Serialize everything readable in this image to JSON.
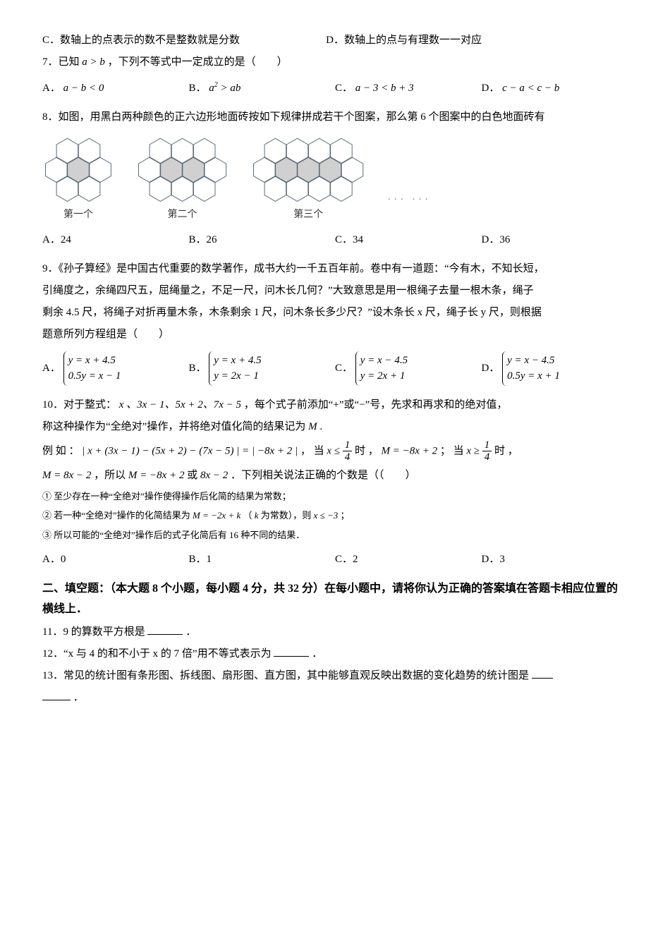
{
  "q6": {
    "optC": "C．数轴上的点表示的数不是整数就是分数",
    "optD": "D．数轴上的点与有理数一一对应"
  },
  "q7": {
    "stem": "7．已知",
    "cond": "a > b",
    "tail": "，下列不等式中一定成立的是（　　）",
    "A": {
      "label": "A．",
      "expr": "a − b < 0"
    },
    "B": {
      "label": "B．",
      "expr_html": "a<span class='sup'>2</span> > ab"
    },
    "C": {
      "label": "C．",
      "expr": "a − 3 < b + 3"
    },
    "D": {
      "label": "D．",
      "expr": "c − a < c − b"
    }
  },
  "q8": {
    "stem": "8．如图，用黑白两种颜色的正六边形地面砖按如下规律拼成若干个图案，那么第 6 个图案中的白色地面砖有",
    "cap1": "第一个",
    "cap2": "第二个",
    "cap3": "第三个",
    "dots": "··· ···",
    "A": "A．24",
    "B": "B．26",
    "C": "C．34",
    "D": "D．36",
    "hex": {
      "stroke": "#5b6b7a",
      "fill_white": "#ffffff",
      "fill_dark": "#d0d0d0",
      "size": 18
    }
  },
  "q9": {
    "stem1": "9．《孙子算经》是中国古代重要的数学著作，成书大约一千五百年前。卷中有一道题：“今有木，不知长短，",
    "stem2": "引绳度之，余绳四尺五，屈绳量之，不足一尺，问木长几何？”大致意思是用一根绳子去量一根木条，绳子",
    "stem3": "剩余 4.5 尺，将绳子对折再量木条，木条剩余 1 尺，问木条长多少尺？”设木条长 x 尺，绳子长 y 尺，则根据",
    "stem4": "题意所列方程组是（　　）",
    "A": {
      "label": "A．",
      "r1": "y = x + 4.5",
      "r2": "0.5y = x − 1"
    },
    "B": {
      "label": "B．",
      "r1": "y = x + 4.5",
      "r2": "y = 2x − 1"
    },
    "C": {
      "label": "C．",
      "r1": "y = x − 4.5",
      "r2": "y = 2x + 1"
    },
    "D": {
      "label": "D．",
      "r1": "y = x − 4.5",
      "r2": "0.5y = x + 1"
    }
  },
  "q10": {
    "stem1_a": "10．对于整式：",
    "stem1_b": "x 、3x − 1、5x + 2、7x − 5",
    "stem1_c": "，每个式子前添加“+”或“−”号，先求和再求和的绝对值，",
    "stem2_a": "称这种操作为“全绝对”操作，并将绝对值化简的结果记为",
    "stem2_b": "M",
    "stem2_c": " .",
    "ex_a": "例 如 ：",
    "ex_expr": "| x + (3x − 1) − (5x + 2) − (7x − 5) | = | −8x + 2 |",
    "ex_b": "， 当",
    "ex_cond1_lhs": "x ≤ ",
    "ex_cond1_num": "1",
    "ex_cond1_den": "4",
    "ex_c": "时 ，",
    "ex_m1": "M = −8x + 2",
    "ex_d": "； 当",
    "ex_cond2_lhs": "x ≥ ",
    "ex_cond2_num": "1",
    "ex_cond2_den": "4",
    "ex_e": "时 ，",
    "line3_a": "M = 8x − 2",
    "line3_b": "，所以",
    "line3_c": "M = −8x + 2",
    "line3_d": "或",
    "line3_e": "8x − 2",
    "line3_f": "．下列相关说法正确的个数是（（　　）",
    "s1": "① 至少存在一种“全绝对”操作使得操作后化简的结果为常数；",
    "s2_a": "② 若一种“全绝对”操作的化简结果为",
    "s2_b": "M = −2x + k",
    "s2_c": "（",
    "s2_d": "k",
    "s2_e": " 为常数），则",
    "s2_f": "x ≤ −3",
    "s2_g": "；",
    "s3": "③ 所以可能的“全绝对”操作后的式子化简后有 16 种不同的结果．",
    "A": "A．0",
    "B": "B．1",
    "C": "C．2",
    "D": "D．3"
  },
  "section2": {
    "heading": "二、填空题：（本大题 8 个小题，每小题 4 分，共 32 分）在每小题中，请将你认为正确的答案填在答题卡相应位置的横线上．"
  },
  "q11": {
    "text_a": "11．9 的算数平方根是",
    "text_b": "．"
  },
  "q12": {
    "text_a": "12．“x 与 4 的和不小于 x 的 7 倍”用不等式表示为",
    "text_b": "．"
  },
  "q13": {
    "text_a": "13．常见的统计图有条形图、拆线图、扇形图、直方图，其中能够直观反映出数据的变化趋势的统计图是",
    "text_b": "．"
  }
}
